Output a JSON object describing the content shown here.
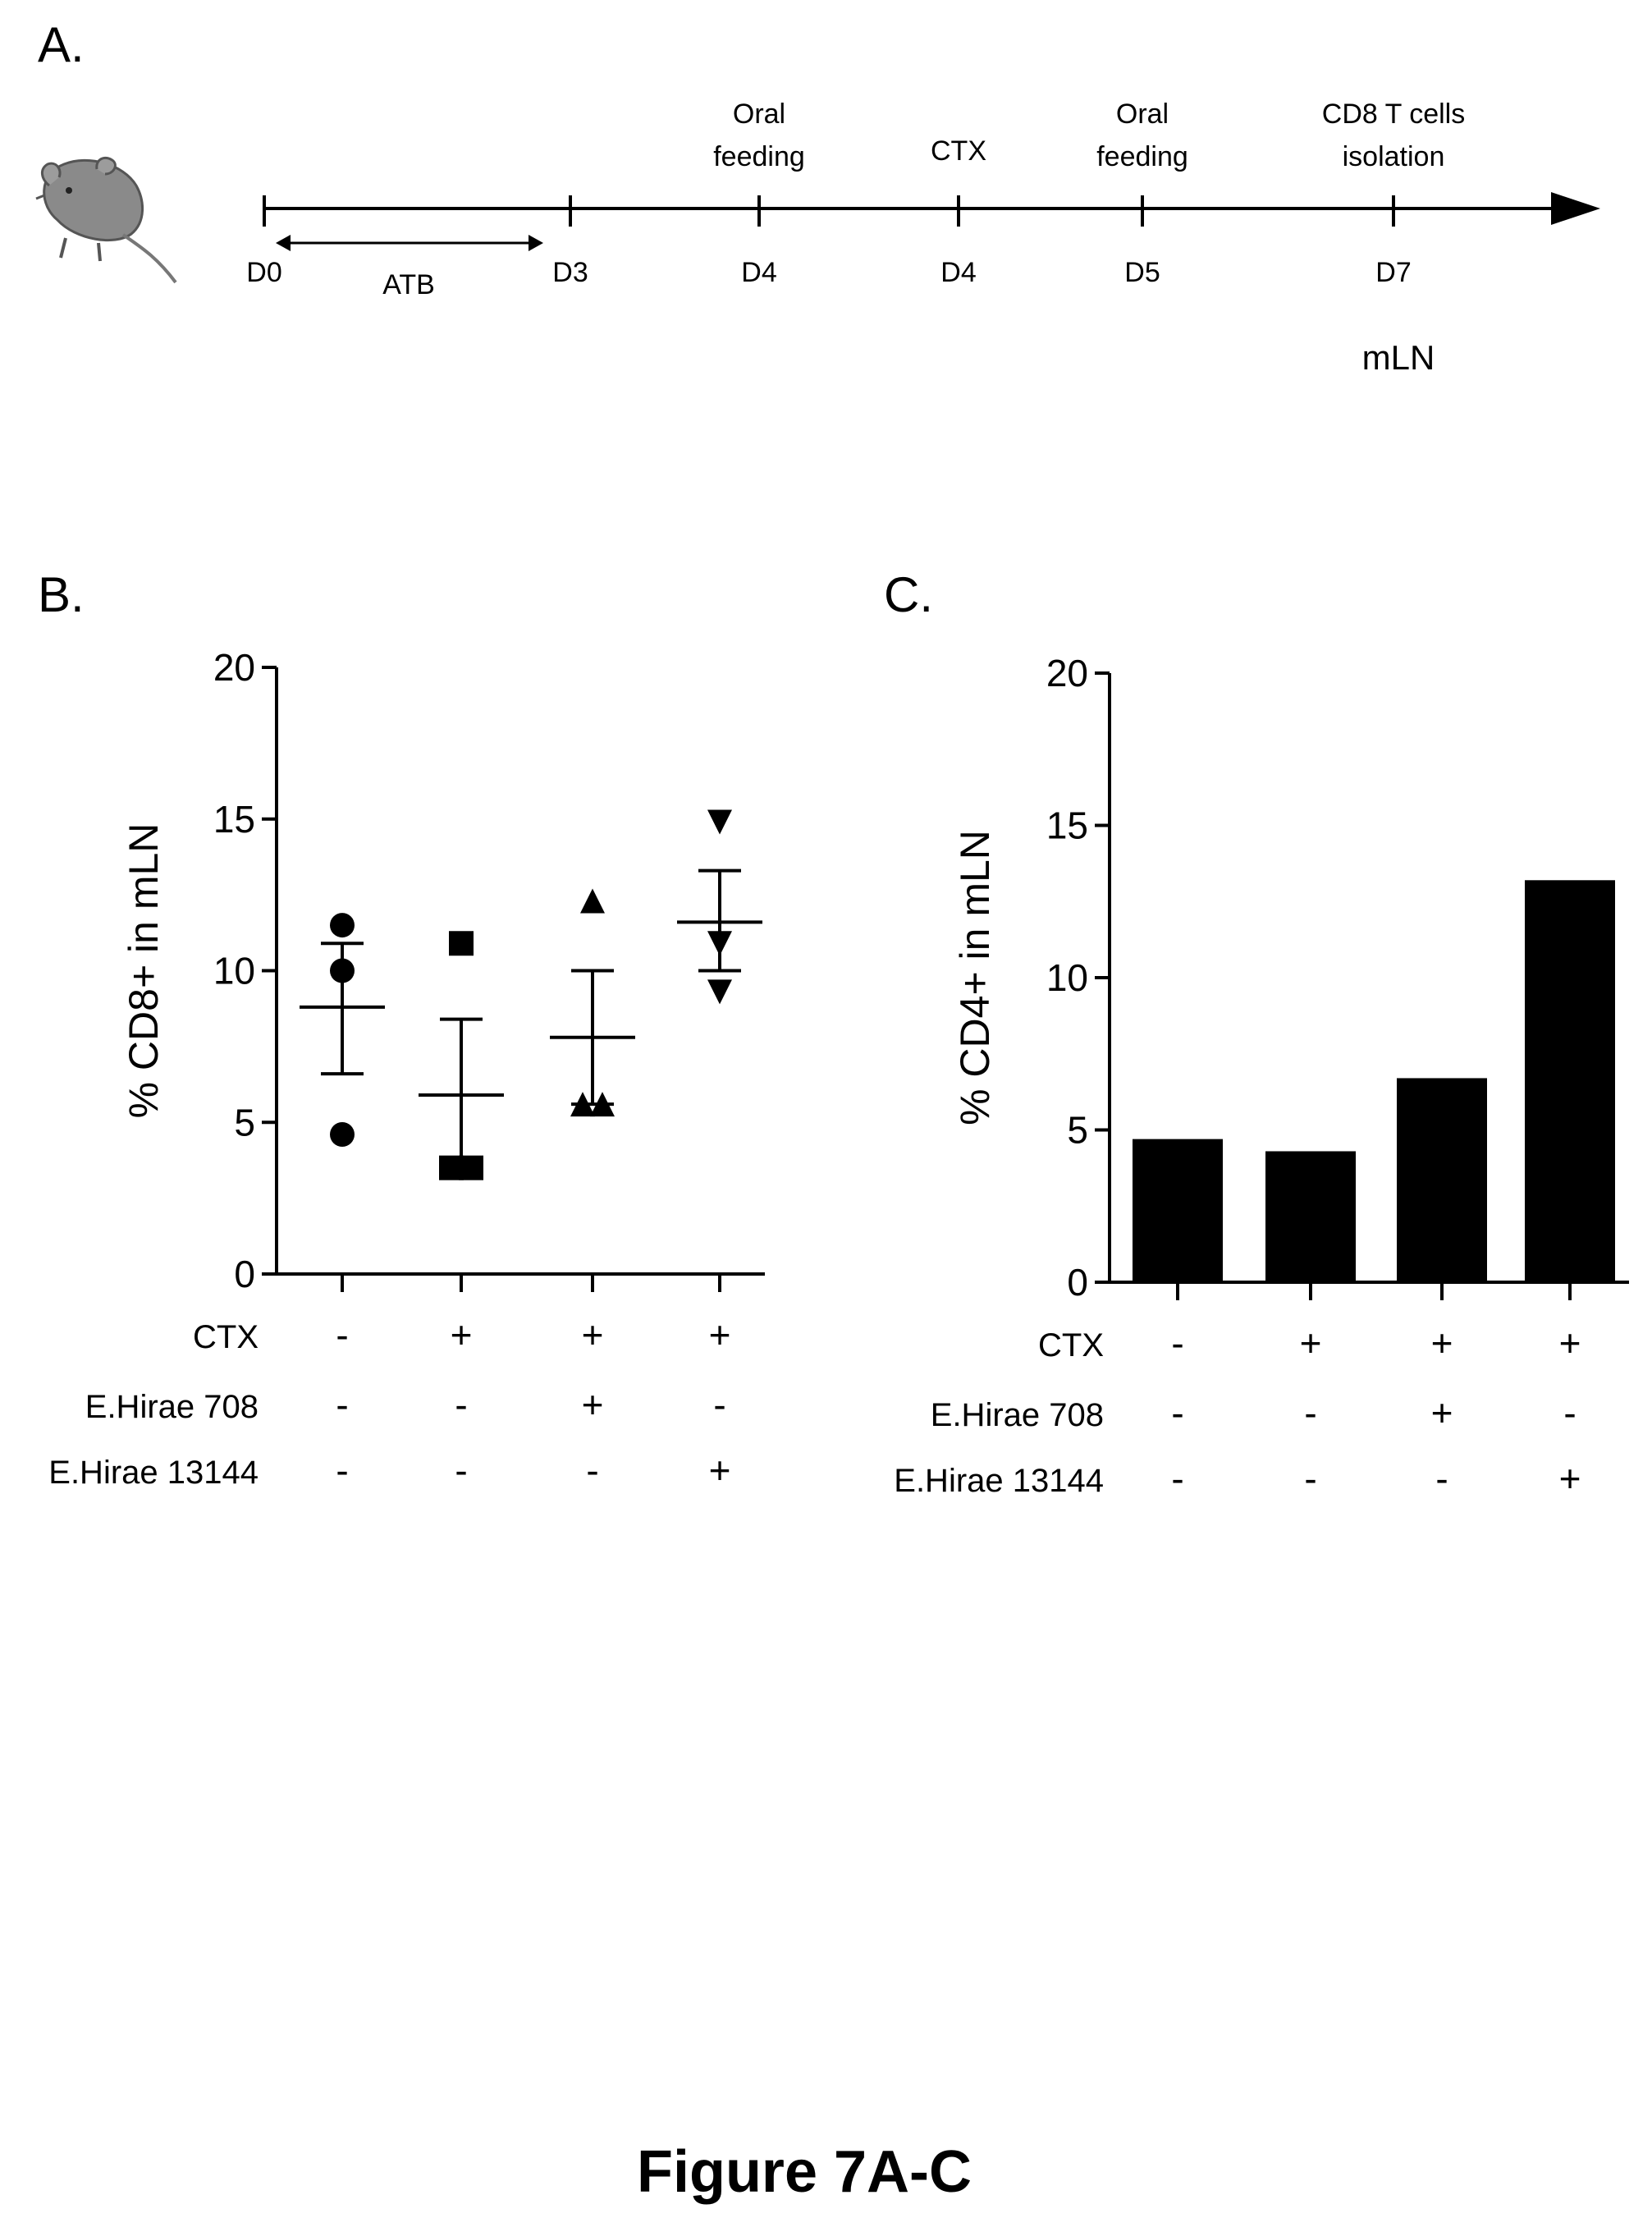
{
  "figure_caption": "Figure 7A-C",
  "panels": {
    "a": {
      "label": "A."
    },
    "b": {
      "label": "B."
    },
    "c": {
      "label": "C."
    }
  },
  "timeline": {
    "ticks": [
      {
        "day": "D0",
        "event": ""
      },
      {
        "day": "D3",
        "event": ""
      },
      {
        "day": "D4",
        "event": "Oral feeding"
      },
      {
        "day": "D4",
        "event": "CTX"
      },
      {
        "day": "D5",
        "event": "Oral feeding"
      },
      {
        "day": "D7",
        "event": "CD8 T cells isolation"
      }
    ],
    "range_label": "ATB",
    "site_label": "mLN",
    "icon": "mouse-icon"
  },
  "conditions": {
    "row_labels": [
      "CTX",
      "E.Hirae 708",
      "E.Hirae 13144"
    ],
    "columns": [
      [
        "-",
        "-",
        "-"
      ],
      [
        "+",
        "-",
        "-"
      ],
      [
        "+",
        "+",
        "-"
      ],
      [
        "+",
        "-",
        "+"
      ]
    ]
  },
  "chart_data": [
    {
      "panel": "B.",
      "type": "scatter",
      "ylabel": "% CD8+ in mLN",
      "ylim": [
        0,
        20
      ],
      "yticks": [
        0,
        5,
        10,
        15,
        20
      ],
      "groups": [
        {
          "marker": "circle",
          "values": [
            11.5,
            10.0,
            4.6
          ],
          "mean": 8.8,
          "sem_low": 6.6,
          "sem_high": 10.9
        },
        {
          "marker": "square",
          "values": [
            10.9,
            3.5,
            3.5
          ],
          "mean": 5.9,
          "sem_low": 3.5,
          "sem_high": 8.4
        },
        {
          "marker": "triangle-up",
          "values": [
            12.3,
            5.6,
            5.6
          ],
          "mean": 7.8,
          "sem_low": 5.6,
          "sem_high": 10.0
        },
        {
          "marker": "triangle-down",
          "values": [
            14.9,
            10.9,
            9.3
          ],
          "mean": 11.6,
          "sem_low": 10.0,
          "sem_high": 13.3
        }
      ]
    },
    {
      "panel": "C.",
      "type": "bar",
      "ylabel": "% CD4+ in mLN",
      "ylim": [
        0,
        20
      ],
      "yticks": [
        0,
        5,
        10,
        15,
        20
      ],
      "values": [
        4.7,
        4.3,
        6.7,
        13.2
      ],
      "bar_color": "#000000"
    }
  ]
}
